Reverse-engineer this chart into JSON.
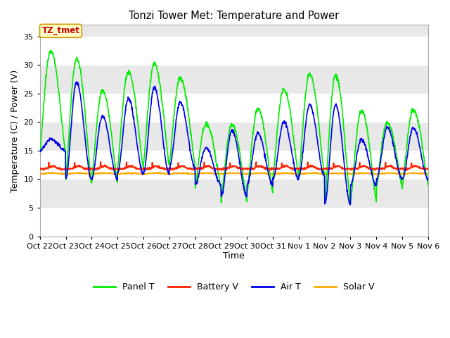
{
  "title": "Tonzi Tower Met: Temperature and Power",
  "xlabel": "Time",
  "ylabel": "Temperature (C) / Power (V)",
  "ylim": [
    0,
    37
  ],
  "yticks": [
    0,
    5,
    10,
    15,
    20,
    25,
    30,
    35
  ],
  "x_tick_labels": [
    "Oct 22",
    "Oct 23",
    "Oct 24",
    "Oct 25",
    "Oct 26",
    "Oct 27",
    "Oct 28",
    "Oct 29",
    "Oct 30",
    "Oct 31",
    "Nov 1",
    "Nov 2",
    "Nov 3",
    "Nov 4",
    "Nov 5",
    "Nov 6"
  ],
  "annotation_text": "TZ_tmet",
  "annotation_color": "#cc0000",
  "annotation_bg": "#ffffcc",
  "annotation_border": "#cc9900",
  "fig_bg": "#ffffff",
  "plot_bg": "#e8e8e8",
  "grid_color": "#ffffff",
  "panel_t_color": "#00ee00",
  "battery_v_color": "#ff2200",
  "air_t_color": "#0000ee",
  "solar_v_color": "#ffaa00",
  "line_width": 1.2,
  "n_days": 15,
  "n_points_per_day": 96,
  "panel_t_peaks": [
    32.5,
    31.1,
    25.5,
    28.8,
    30.2,
    27.7,
    19.8,
    19.5,
    22.3,
    25.7,
    28.4,
    28.3,
    22.0,
    19.8,
    22.1
  ],
  "panel_t_mins": [
    14.5,
    9.5,
    9.5,
    12.0,
    12.5,
    12.5,
    8.5,
    6.2,
    7.5,
    10.5,
    10.5,
    5.5,
    6.0,
    8.5,
    9.0
  ],
  "air_t_peaks": [
    17.0,
    27.0,
    21.0,
    24.0,
    26.0,
    23.5,
    15.5,
    18.5,
    18.0,
    20.0,
    23.0,
    23.0,
    17.0,
    19.0,
    19.0
  ],
  "air_t_mins": [
    15.0,
    10.0,
    10.0,
    11.0,
    11.0,
    12.0,
    9.0,
    7.0,
    9.0,
    10.0,
    10.5,
    5.5,
    9.0,
    10.0,
    10.0
  ],
  "batt_base": 11.8,
  "solar_base": 10.9
}
